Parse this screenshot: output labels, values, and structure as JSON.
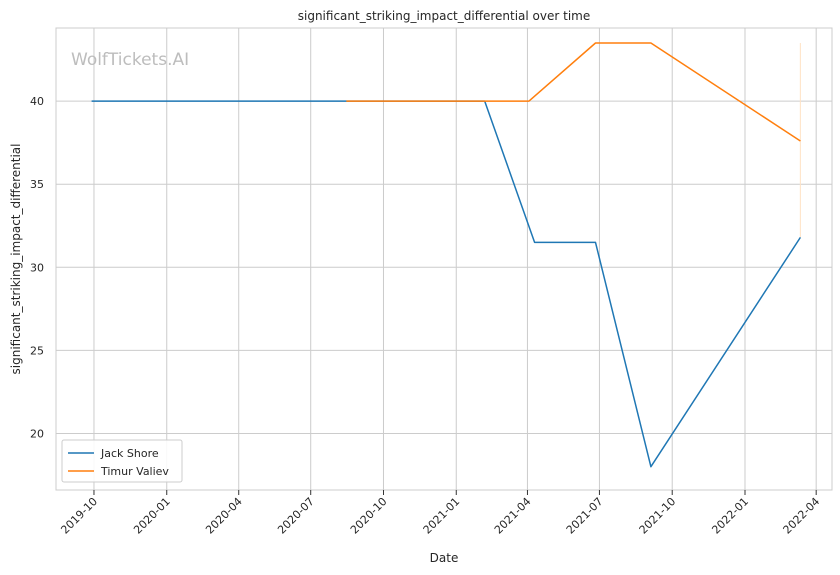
{
  "chart_data": {
    "type": "line",
    "title": "significant_striking_impact_differential over time",
    "xlabel": "Date",
    "ylabel": "significant_striking_impact_differential",
    "watermark": "WolfTickets.AI",
    "x_ticks": [
      "2019-10",
      "2020-01",
      "2020-04",
      "2020-07",
      "2020-10",
      "2021-01",
      "2021-04",
      "2021-07",
      "2021-10",
      "2022-01",
      "2022-04"
    ],
    "y_ticks": [
      20,
      25,
      30,
      35,
      40
    ],
    "xlim": [
      "2019-08-14",
      "2022-04-21"
    ],
    "ylim": [
      16.6,
      44.4
    ],
    "grid": true,
    "legend_position": "lower-left",
    "series": [
      {
        "name": "Jack Shore",
        "color": "#1f77b4",
        "points": [
          {
            "x": "2019-09-28",
            "y": 40.0
          },
          {
            "x": "2021-02-06",
            "y": 40.0
          },
          {
            "x": "2021-04-10",
            "y": 31.5
          },
          {
            "x": "2021-06-26",
            "y": 31.5
          },
          {
            "x": "2021-09-04",
            "y": 18.0
          },
          {
            "x": "2022-03-12",
            "y": 31.8
          }
        ]
      },
      {
        "name": "Timur Valiev",
        "color": "#ff7f0e",
        "points": [
          {
            "x": "2020-08-15",
            "y": 40.0
          },
          {
            "x": "2021-04-03",
            "y": 40.0
          },
          {
            "x": "2021-06-26",
            "y": 43.5
          },
          {
            "x": "2021-09-04",
            "y": 43.5
          },
          {
            "x": "2022-03-12",
            "y": 37.6
          }
        ]
      }
    ],
    "annotations": [
      {
        "type": "vertical-segment",
        "x": "2022-03-12",
        "y_from": 31.8,
        "y_to": 43.5,
        "color": "#ffe2c4"
      }
    ]
  }
}
